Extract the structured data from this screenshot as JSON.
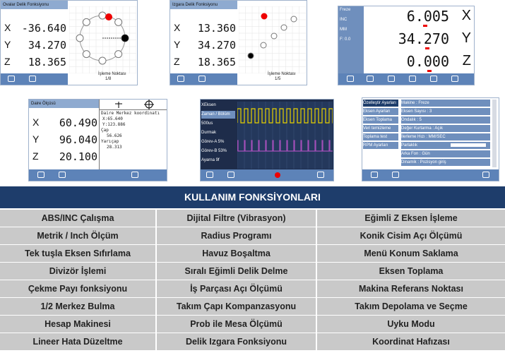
{
  "ovalar": {
    "title": "Ovalar Delik Fonksiyonu",
    "axes": [
      {
        "label": "X",
        "value": "-36.640"
      },
      {
        "label": "Y",
        "value": "34.270"
      },
      {
        "label": "Z",
        "value": "18.365"
      }
    ],
    "footer": "İşleme Noktası",
    "counter": "1/8"
  },
  "izgara": {
    "title": "Izgara Delik Fonksiyonu",
    "axes": [
      {
        "label": "X",
        "value": "13.360"
      },
      {
        "label": "Y",
        "value": "34.270"
      },
      {
        "label": "Z",
        "value": "18.365"
      }
    ],
    "footer": "İşleme Noktası",
    "counter": "1/5"
  },
  "freze": {
    "side": [
      "Freze",
      "INC",
      "MM",
      "F:  0.0"
    ],
    "axes": [
      {
        "label": "X",
        "value": "6.005"
      },
      {
        "label": "Y",
        "value": "34.270"
      },
      {
        "label": "Z",
        "value": "0.000"
      }
    ]
  },
  "daire": {
    "title": "Daire Ölçüsü",
    "axes": [
      {
        "label": "X",
        "value": "60.490"
      },
      {
        "label": "Y",
        "value": "96.040"
      },
      {
        "label": "Z",
        "value": "20.100"
      }
    ],
    "info": [
      "Daire Merkez koordinatı",
      "X:65.640",
      "Y:123.886",
      "Çap",
      "56.626",
      "Yarıçap",
      "28.313"
    ]
  },
  "osc": {
    "items": [
      "XEksen",
      "Zaman / Bölüm",
      "500us",
      "Durmak",
      "Görev-A 5%",
      "Görev-B 53%",
      "Ayarna 9f"
    ]
  },
  "settings": {
    "menu": [
      "Özelleştir Ayarları",
      "Eksen Ayarları",
      "Eksen Toplama",
      "Veri temizleme",
      "Toplama test",
      "RPM Ayarları"
    ],
    "rows": [
      "Makine     : Freze",
      "Eksen Sayısı  : 3",
      "Ondalık      : 5",
      "Değer Kurtarma : Açık",
      "İlerleme Hızı  : MM/SEC",
      "Parlaklık",
      "Arka Fon   : Gün",
      "Dinamik    : Pozisyon giriş"
    ]
  },
  "table": {
    "title": "KULLANIM FONKSİYONLARI",
    "rows": [
      [
        "ABS/INC Çalışma",
        "Dijital Filtre (Vibrasyon)",
        "Eğimli Z Eksen İşleme"
      ],
      [
        "Metrik / Inch Ölçüm",
        "Radius Programı",
        "Konik Cisim Açı Ölçümü"
      ],
      [
        "Tek tuşla Eksen Sıfırlama",
        "Havuz Boşaltma",
        "Menü Konum Saklama"
      ],
      [
        "Divizör İşlemi",
        "Sıralı Eğimli Delik Delme",
        "Eksen Toplama"
      ],
      [
        "Çekme Payı fonksiyonu",
        "İş Parçası Açı Ölçümü",
        "Makina Referans Noktası"
      ],
      [
        "1/2 Merkez Bulma",
        "Takım Çapı Kompanzasyonu",
        "Takım Depolama ve Seçme"
      ],
      [
        "Hesap Makinesi",
        "Prob ile Mesa Ölçümü",
        "Uyku Modu"
      ],
      [
        "Lineer Hata Düzeltme",
        "Delik Izgara Fonksiyonu",
        "Koordinat Hafızası"
      ]
    ]
  }
}
